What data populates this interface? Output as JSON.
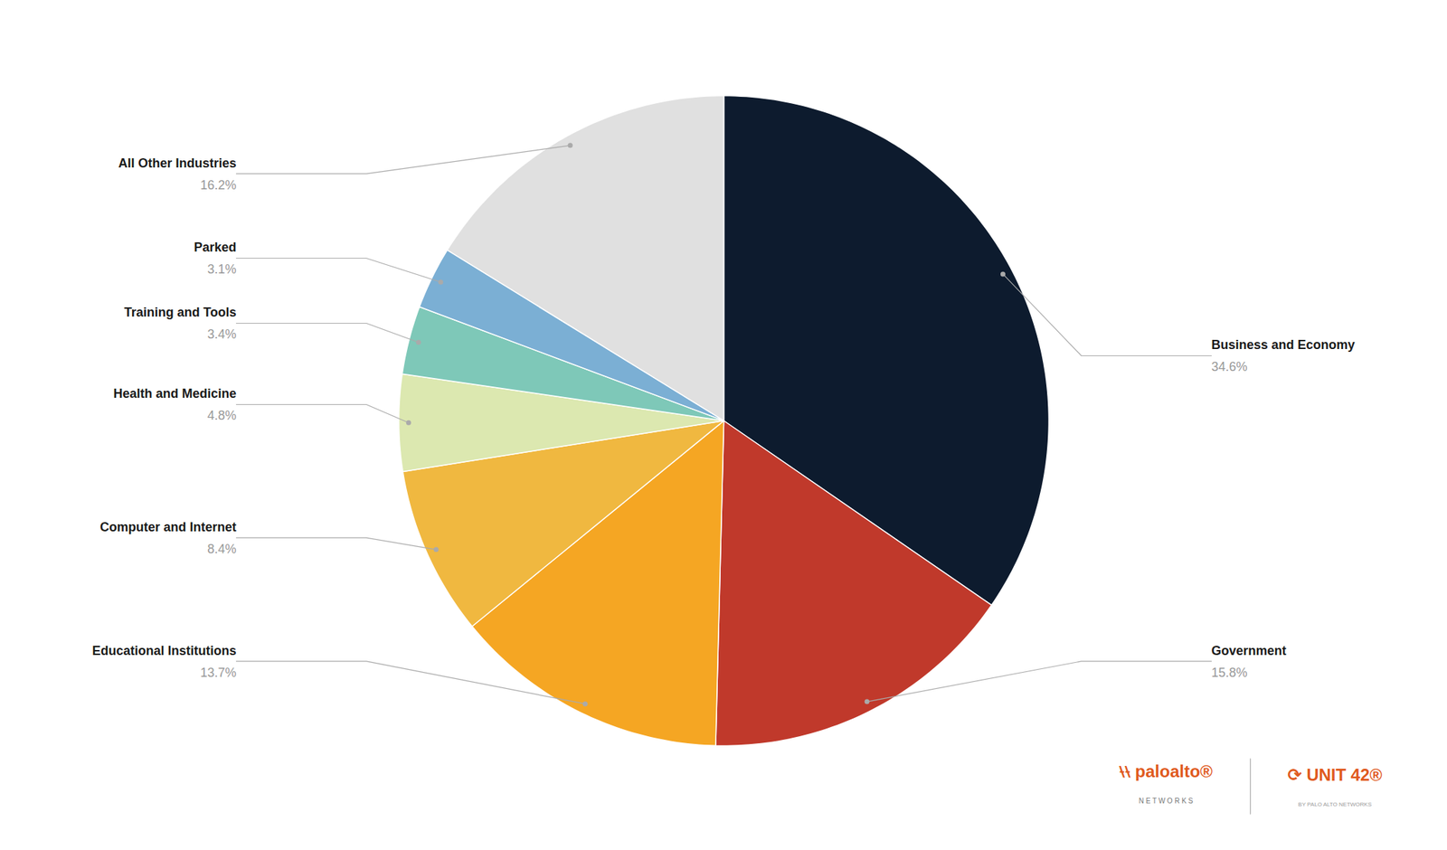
{
  "chart_data": {
    "type": "pie",
    "categories": [
      "Business and Economy",
      "Government",
      "Educational Institutions",
      "Computer and Internet",
      "Health and Medicine",
      "Training and Tools",
      "Parked",
      "All Other Industries"
    ],
    "values": [
      34.6,
      15.8,
      13.7,
      8.4,
      4.8,
      3.4,
      3.1,
      16.2
    ],
    "value_labels": [
      "34.6%",
      "15.8%",
      "13.7%",
      "8.4%",
      "4.8%",
      "3.4%",
      "3.1%",
      "16.2%"
    ],
    "colors": [
      "#0d1b2e",
      "#c0392b",
      "#f5a623",
      "#f0b840",
      "#dce8b0",
      "#7ec8b8",
      "#7bafd4",
      "#e0e0e0"
    ],
    "data_labels": true,
    "annotations": [
      {
        "text": "⧷⧷ paloalto®",
        "color": "#e05a1e"
      },
      {
        "text": "N E T W O R K S",
        "color": "#777777"
      },
      {
        "text": "⟳ UNIT 42®",
        "color": "#e05a1e"
      },
      {
        "text": "BY PALO ALTO NETWORKS",
        "color": "#999999"
      }
    ]
  }
}
